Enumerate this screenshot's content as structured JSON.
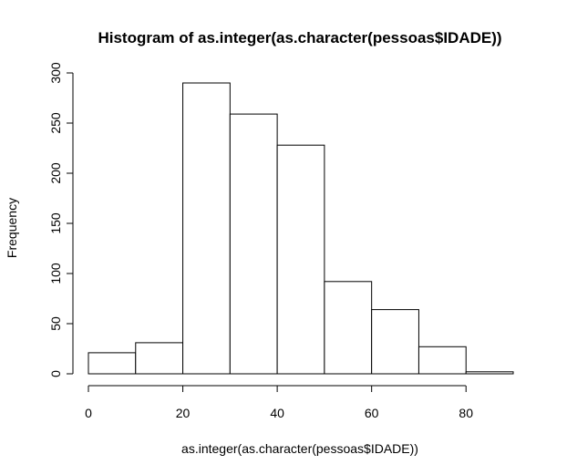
{
  "chart_data": {
    "type": "bar",
    "title": "Histogram of as.integer(as.character(pessoas$IDADE))",
    "xlabel": "as.integer(as.character(pessoas$IDADE))",
    "ylabel": "Frequency",
    "bins": [
      {
        "start": 0,
        "end": 10,
        "count": 21
      },
      {
        "start": 10,
        "end": 20,
        "count": 31
      },
      {
        "start": 20,
        "end": 30,
        "count": 290
      },
      {
        "start": 30,
        "end": 40,
        "count": 259
      },
      {
        "start": 40,
        "end": 50,
        "count": 228
      },
      {
        "start": 50,
        "end": 60,
        "count": 92
      },
      {
        "start": 60,
        "end": 70,
        "count": 64
      },
      {
        "start": 70,
        "end": 80,
        "count": 27
      },
      {
        "start": 80,
        "end": 90,
        "count": 2
      }
    ],
    "xlim": [
      0,
      90
    ],
    "ylim": [
      0,
      300
    ],
    "x_ticks": [
      "0",
      "20",
      "40",
      "60",
      "80"
    ],
    "y_ticks": [
      "0",
      "50",
      "100",
      "150",
      "200",
      "250",
      "300"
    ],
    "grid": false,
    "colors": {
      "bar_fill": "#ffffff",
      "bar_stroke": "#000000",
      "background": "#ffffff"
    }
  }
}
